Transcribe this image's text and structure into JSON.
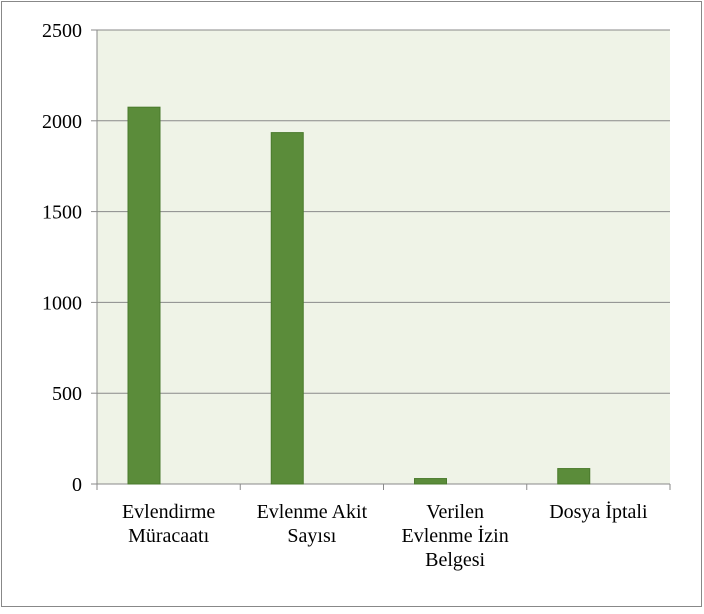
{
  "chart_data": {
    "type": "bar",
    "categories": [
      "Evlendirme Müracaatı",
      "Evlenme Akit Sayısı",
      "Verilen Evlenme İzin Belgesi",
      "Dosya İptali"
    ],
    "values": [
      2075,
      1935,
      30,
      85
    ],
    "color": "#5b8c3a",
    "ylim": [
      0,
      2500
    ],
    "yticks": [
      0,
      500,
      1000,
      1500,
      2000,
      2500
    ],
    "grid": true
  }
}
